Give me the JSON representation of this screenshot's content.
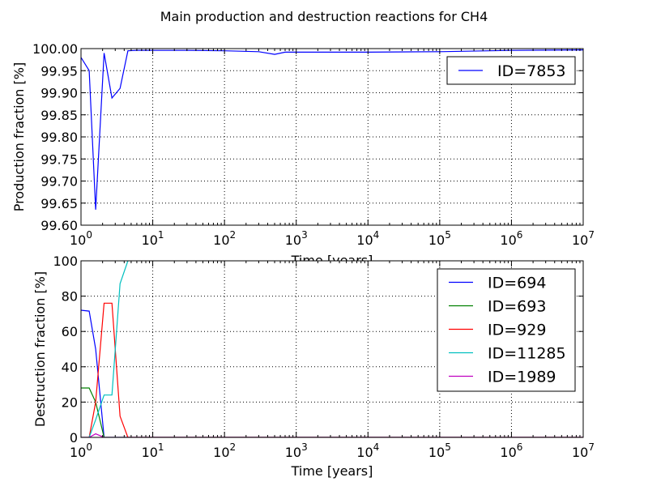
{
  "figure": {
    "title": "Main production and destruction reactions for CH4"
  },
  "colors": {
    "blue": "#0000ff",
    "green": "#008000",
    "red": "#ff0000",
    "cyan": "#00bfbf",
    "magenta": "#bf00bf"
  },
  "chart_data": [
    {
      "type": "line",
      "xlabel": "Time [years]",
      "ylabel": "Production fraction [%]",
      "xscale": "log",
      "xlim": [
        1,
        10000000
      ],
      "ylim": [
        99.6,
        100.0
      ],
      "grid": true,
      "legend_position": "top-right",
      "x_ticks": [
        {
          "mant": "10",
          "exp": "0"
        },
        {
          "mant": "10",
          "exp": "1"
        },
        {
          "mant": "10",
          "exp": "2"
        },
        {
          "mant": "10",
          "exp": "3"
        },
        {
          "mant": "10",
          "exp": "4"
        },
        {
          "mant": "10",
          "exp": "5"
        },
        {
          "mant": "10",
          "exp": "6"
        },
        {
          "mant": "10",
          "exp": "7"
        }
      ],
      "y_ticks": [
        "99.60",
        "99.65",
        "99.70",
        "99.75",
        "99.80",
        "99.85",
        "99.90",
        "99.95",
        "100.00"
      ],
      "series": [
        {
          "name": "ID=7853",
          "color": "#0000ff",
          "x": [
            1,
            1.3,
            1.6,
            2.1,
            2.7,
            3.5,
            4.5,
            6,
            10,
            30,
            100,
            300,
            500,
            700,
            1000,
            3000,
            10000,
            100000,
            1000000,
            10000000
          ],
          "y": [
            99.98,
            99.95,
            99.635,
            99.99,
            99.888,
            99.91,
            99.995,
            99.996,
            99.996,
            99.996,
            99.995,
            99.993,
            99.987,
            99.992,
            99.992,
            99.992,
            99.992,
            99.993,
            99.996,
            99.997
          ]
        }
      ]
    },
    {
      "type": "line",
      "xlabel": "Time [years]",
      "ylabel": "Destruction fraction [%]",
      "xscale": "log",
      "xlim": [
        1,
        10000000
      ],
      "ylim": [
        0,
        100
      ],
      "grid": true,
      "legend_position": "top-right",
      "x_ticks": [
        {
          "mant": "10",
          "exp": "0"
        },
        {
          "mant": "10",
          "exp": "1"
        },
        {
          "mant": "10",
          "exp": "2"
        },
        {
          "mant": "10",
          "exp": "3"
        },
        {
          "mant": "10",
          "exp": "4"
        },
        {
          "mant": "10",
          "exp": "5"
        },
        {
          "mant": "10",
          "exp": "6"
        },
        {
          "mant": "10",
          "exp": "7"
        }
      ],
      "y_ticks": [
        "0",
        "20",
        "40",
        "60",
        "80",
        "100"
      ],
      "series": [
        {
          "name": "ID=694",
          "color": "#0000ff",
          "x": [
            1,
            1.3,
            1.6,
            2.1,
            10000000
          ],
          "y": [
            72,
            71.5,
            50,
            0,
            0
          ]
        },
        {
          "name": "ID=693",
          "color": "#008000",
          "x": [
            1,
            1.3,
            1.6,
            2.1,
            10000000
          ],
          "y": [
            28,
            28,
            20,
            0,
            0
          ]
        },
        {
          "name": "ID=929",
          "color": "#ff0000",
          "x": [
            1,
            1.3,
            1.6,
            2.1,
            2.7,
            3.5,
            4.5,
            10000000
          ],
          "y": [
            0,
            0,
            20,
            76,
            76,
            12,
            0,
            0
          ]
        },
        {
          "name": "ID=11285",
          "color": "#00bfbf",
          "x": [
            1,
            1.3,
            1.6,
            2.1,
            2.7,
            3.5,
            4.5
          ],
          "y": [
            0,
            0,
            10,
            24,
            24,
            87,
            100
          ]
        },
        {
          "name": "ID=1989",
          "color": "#bf00bf",
          "x": [
            1,
            1.3,
            1.6,
            2.1,
            10000000
          ],
          "y": [
            0,
            0,
            2,
            0,
            0
          ]
        }
      ]
    }
  ]
}
